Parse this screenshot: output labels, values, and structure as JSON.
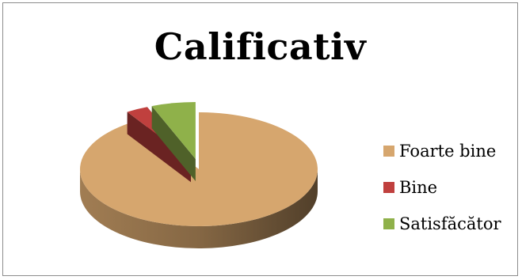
{
  "chart_data": {
    "type": "pie",
    "title": "Calificativ",
    "categories": [
      "Foarte bine",
      "Bine",
      "Satisfăcător"
    ],
    "values": [
      91,
      3,
      6
    ],
    "colors": [
      "#d6a66e",
      "#c0403e",
      "#8fb14a"
    ],
    "exploded": [
      "Bine",
      "Satisfăcător"
    ],
    "legend": "right",
    "style": "3d"
  }
}
